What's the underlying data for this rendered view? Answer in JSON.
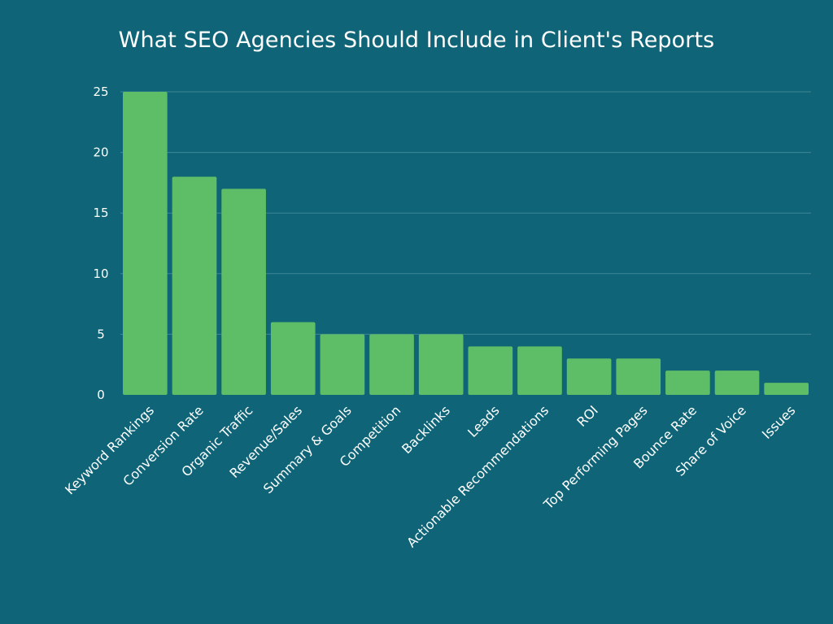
{
  "chart_data": {
    "type": "bar",
    "title": "What SEO Agencies Should Include in Client's Reports",
    "xlabel": "",
    "ylabel": "",
    "categories": [
      "Keyword Rankings",
      "Conversion Rate",
      "Organic Traffic",
      "Revenue/Sales",
      "Summary & Goals",
      "Competition",
      "Backlinks",
      "Leads",
      "Actionable Recommendations",
      "ROI",
      "Top Performing Pages",
      "Bounce Rate",
      "Share of Voice",
      "Issues"
    ],
    "values": [
      25,
      18,
      17,
      6,
      5,
      5,
      5,
      4,
      4,
      3,
      3,
      2,
      2,
      1
    ],
    "ylim": [
      0,
      25
    ],
    "yticks": [
      0,
      5,
      10,
      15,
      20,
      25
    ],
    "grid": true,
    "legend": "none",
    "colors": {
      "background": "#0f6577",
      "bar": "#5ebd67",
      "grid": "#3f8695",
      "text": "#ffffff"
    }
  }
}
